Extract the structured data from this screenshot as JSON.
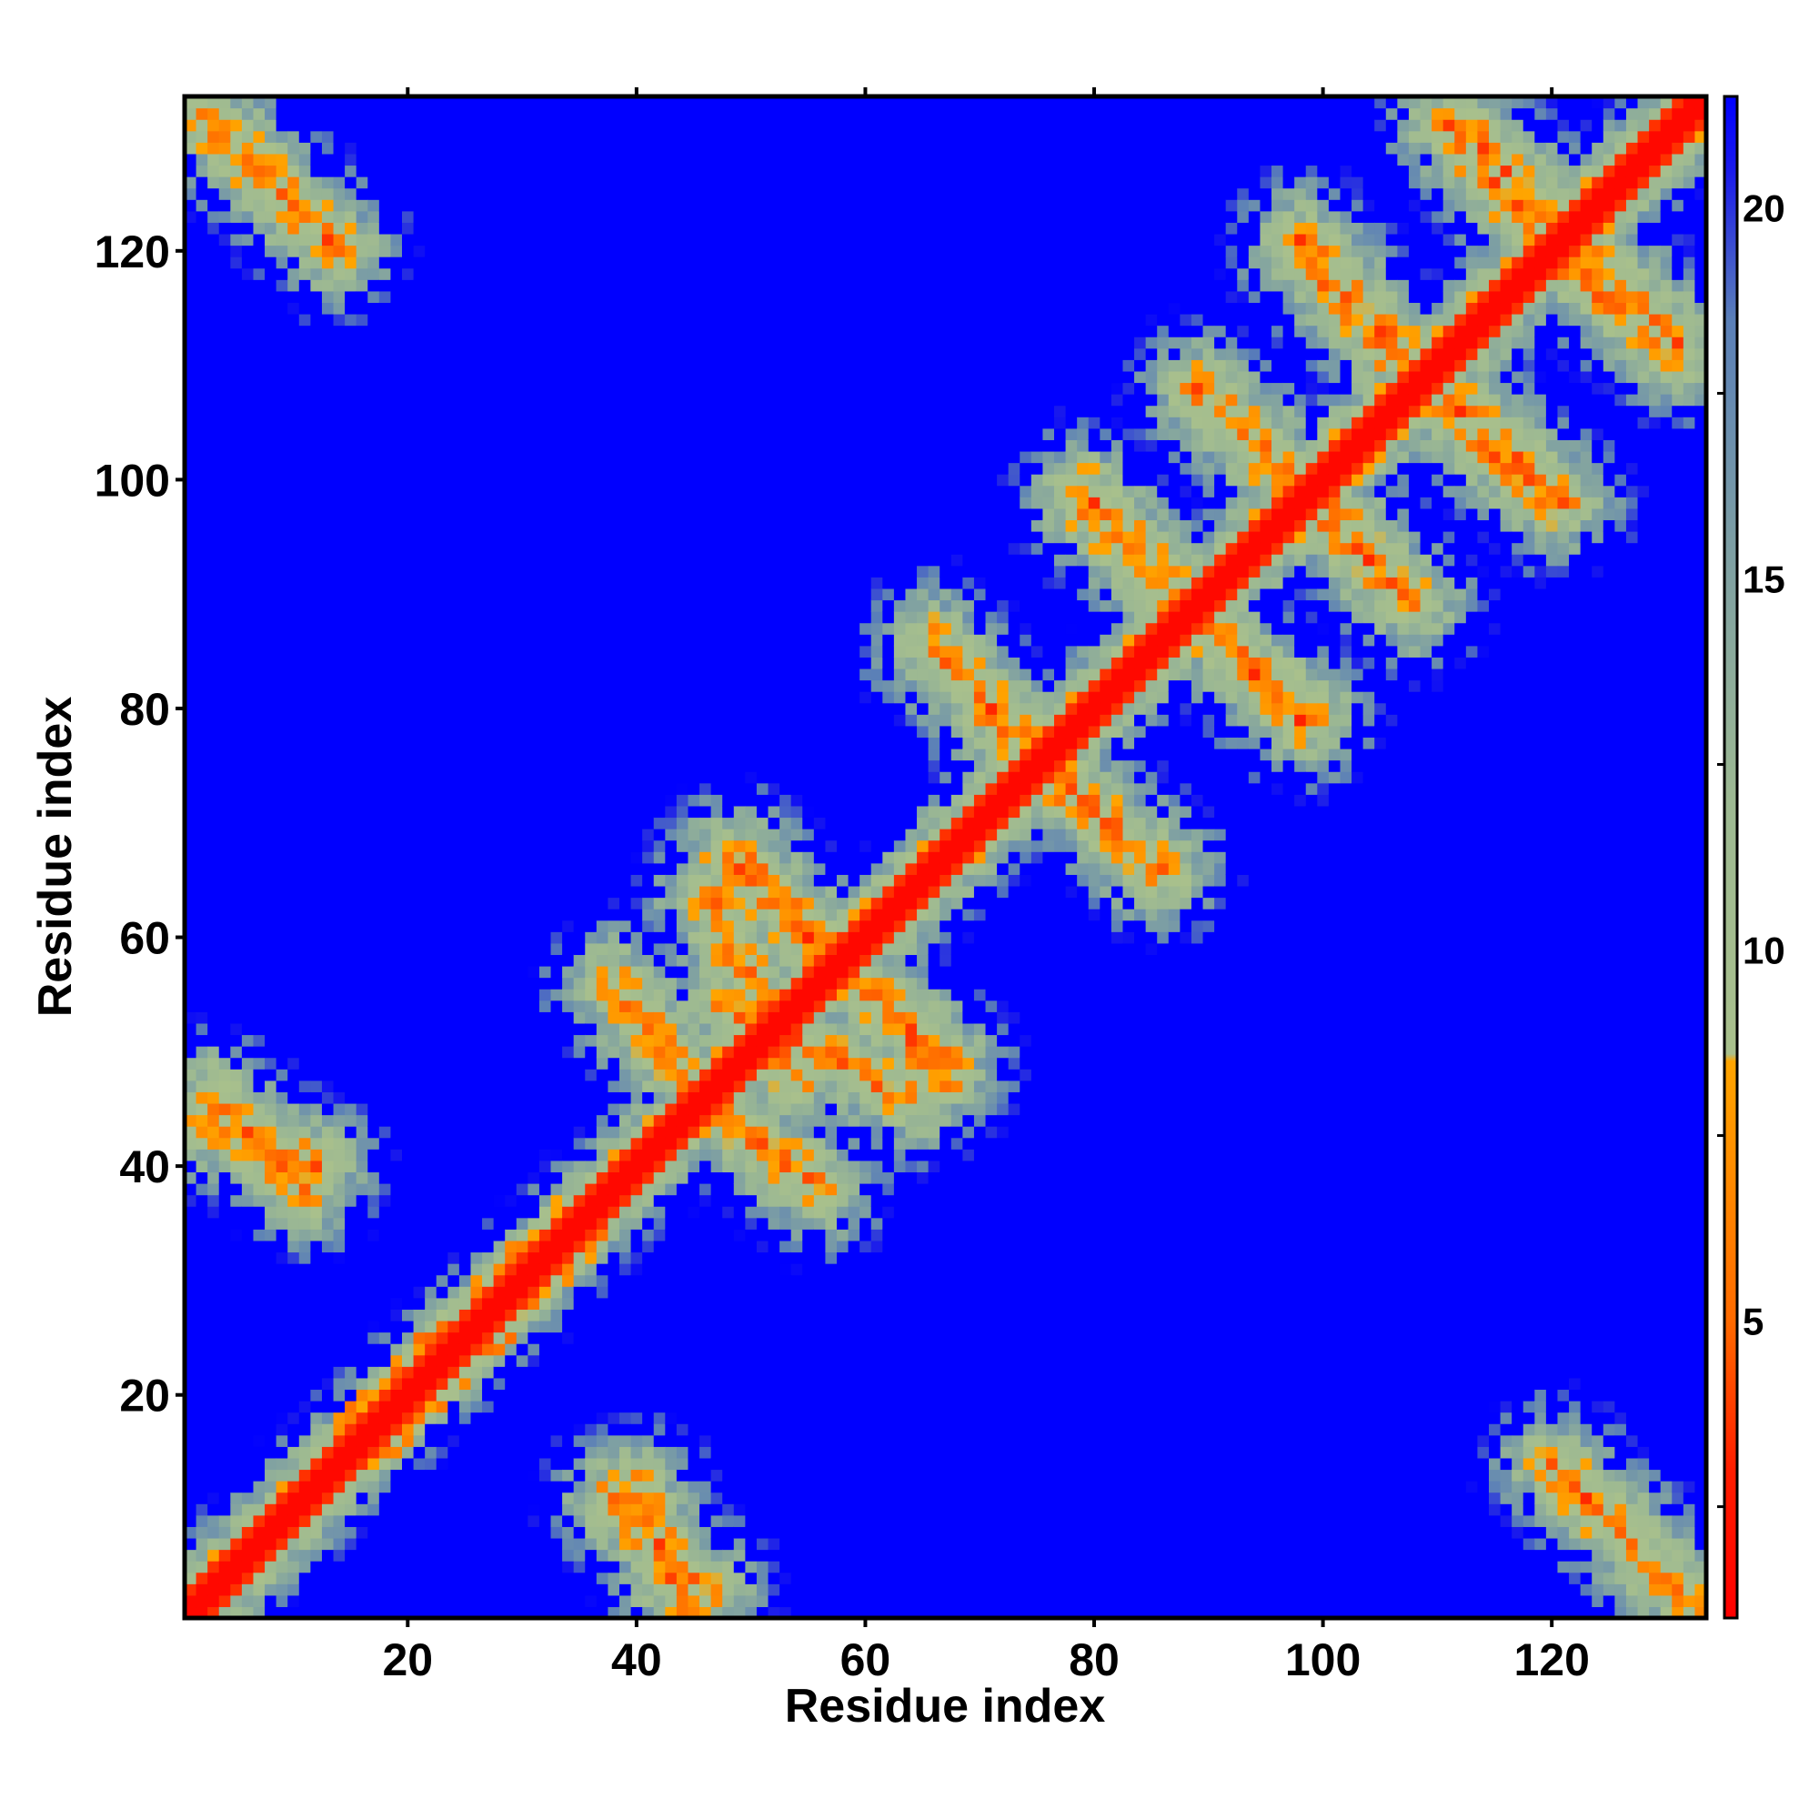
{
  "chart_data": {
    "type": "heatmap",
    "title": "",
    "xlabel": "Residue index",
    "ylabel": "Residue index",
    "xlim": [
      1,
      133
    ],
    "ylim": [
      1,
      133
    ],
    "xticks": [
      20,
      40,
      60,
      80,
      100,
      120
    ],
    "yticks": [
      20,
      40,
      60,
      80,
      100,
      120
    ],
    "colorbar": {
      "range": [
        1,
        21.5
      ],
      "ticks": [
        5,
        10,
        15,
        20
      ],
      "stops": [
        {
          "value": 1,
          "color": "#ff0000"
        },
        {
          "value": 3,
          "color": "#ff1e00"
        },
        {
          "value": 5,
          "color": "#ff6a00"
        },
        {
          "value": 8.5,
          "color": "#ffa500"
        },
        {
          "value": 8.6,
          "color": "#a9c08c"
        },
        {
          "value": 12,
          "color": "#9db992"
        },
        {
          "value": 15.5,
          "color": "#7c9ea4"
        },
        {
          "value": 18.5,
          "color": "#5a7fb8"
        },
        {
          "value": 20.5,
          "color": "#1a1aec"
        },
        {
          "value": 21.5,
          "color": "#0000ff"
        }
      ]
    },
    "colors": {
      "far": "#0000ff",
      "mid_far": "#7c9ea4",
      "mid": "#a9c08c",
      "near": "#ffa500",
      "contact": "#ff0000"
    },
    "description_of_structure": {
      "diagonal_contacts_range": [
        1,
        133
      ],
      "helix_band_range": [
        14,
        37
      ],
      "antiparallel_contacts": [
        {
          "i_range": [
            2,
            14
          ],
          "j_range": [
            120,
            132
          ]
        },
        {
          "i_range": [
            40,
            44
          ],
          "j_range": [
            2,
            12
          ]
        },
        {
          "i_range": [
            3,
            11
          ],
          "j_range": [
            38,
            46
          ]
        },
        {
          "i_range": [
            46,
            54
          ],
          "j_range": [
            48,
            64
          ]
        },
        {
          "i_range": [
            47,
            56
          ],
          "j_range": [
            38,
            45
          ]
        },
        {
          "i_range": [
            49,
            58
          ],
          "j_range": [
            58,
            67
          ]
        },
        {
          "i_range": [
            58,
            67
          ],
          "j_range": [
            48,
            57
          ]
        },
        {
          "i_range": [
            66,
            74
          ],
          "j_range": [
            76,
            86
          ]
        },
        {
          "i_range": [
            76,
            85
          ],
          "j_range": [
            66,
            75
          ]
        },
        {
          "i_range": [
            79,
            88
          ],
          "j_range": [
            89,
            99
          ]
        },
        {
          "i_range": [
            89,
            98
          ],
          "j_range": [
            79,
            88
          ]
        },
        {
          "i_range": [
            89,
            97
          ],
          "j_range": [
            100,
            108
          ]
        },
        {
          "i_range": [
            100,
            108
          ],
          "j_range": [
            89,
            98
          ]
        },
        {
          "i_range": [
            98,
            107
          ],
          "j_range": [
            111,
            121
          ]
        },
        {
          "i_range": [
            111,
            120
          ],
          "j_range": [
            98,
            106
          ]
        },
        {
          "i_range": [
            112,
            120
          ],
          "j_range": [
            123,
            131
          ]
        },
        {
          "i_range": [
            121,
            131
          ],
          "j_range": [
            111,
            119
          ]
        },
        {
          "i_range": [
            120,
            132
          ],
          "j_range": [
            2,
            14
          ]
        }
      ]
    }
  }
}
